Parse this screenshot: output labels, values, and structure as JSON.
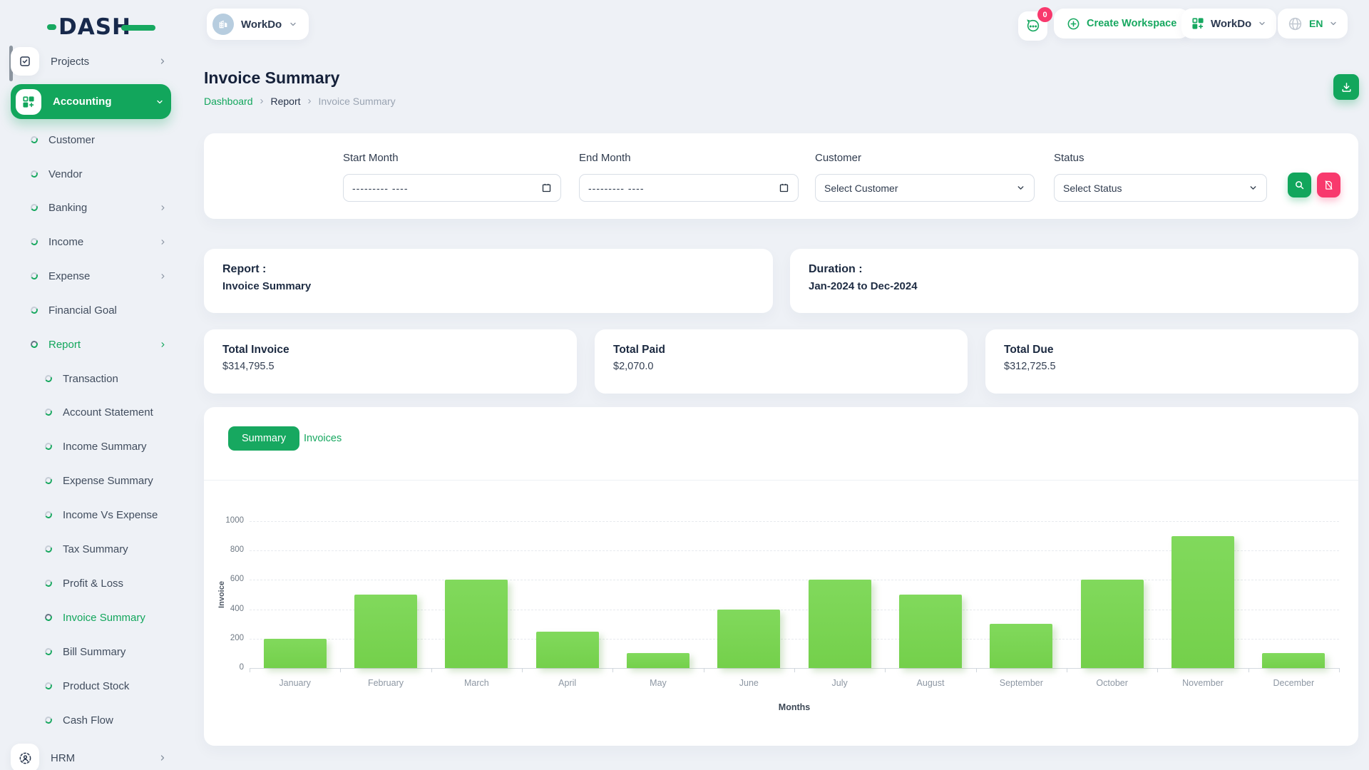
{
  "brand": {
    "name": "DASH"
  },
  "topbar": {
    "workspace_selector": {
      "label": "WorkDo",
      "avatar_icon": "building-icon"
    },
    "messages": {
      "badge": "0",
      "icon": "chat-bubble-icon"
    },
    "create_workspace": {
      "label": "Create Workspace",
      "icon": "plus-circle-icon"
    },
    "workspace_menu": {
      "label": "WorkDo",
      "icon": "grid-plus-icon"
    },
    "language_menu": {
      "label": "EN",
      "icon": "globe-icon"
    }
  },
  "sidebar": {
    "items": [
      {
        "label": "Projects"
      },
      {
        "label": "Accounting"
      },
      {
        "label": "Customer"
      },
      {
        "label": "Vendor"
      },
      {
        "label": "Banking"
      },
      {
        "label": "Income"
      },
      {
        "label": "Expense"
      },
      {
        "label": "Financial Goal"
      },
      {
        "label": "Report"
      },
      {
        "label": "Transaction"
      },
      {
        "label": "Account Statement"
      },
      {
        "label": "Income Summary"
      },
      {
        "label": "Expense Summary"
      },
      {
        "label": "Income Vs Expense"
      },
      {
        "label": "Tax Summary"
      },
      {
        "label": "Profit & Loss"
      },
      {
        "label": "Invoice Summary"
      },
      {
        "label": "Bill Summary"
      },
      {
        "label": "Product Stock"
      },
      {
        "label": "Cash Flow"
      },
      {
        "label": "HRM"
      }
    ]
  },
  "page": {
    "title": "Invoice Summary",
    "breadcrumb": {
      "items": [
        "Dashboard",
        "Report",
        "Invoice Summary"
      ]
    }
  },
  "filters": {
    "start_month": {
      "label": "Start Month",
      "placeholder": "--------- ----"
    },
    "end_month": {
      "label": "End Month",
      "placeholder": "--------- ----"
    },
    "customer": {
      "label": "Customer",
      "value": "Select Customer"
    },
    "status": {
      "label": "Status",
      "value": "Select Status"
    }
  },
  "report_info": {
    "title": "Report :",
    "value": "Invoice Summary"
  },
  "duration_info": {
    "title": "Duration :",
    "value": "Jan-2024 to Dec-2024"
  },
  "stats": [
    {
      "label": "Total Invoice",
      "value": "$314,795.5"
    },
    {
      "label": "Total Paid",
      "value": "$2,070.0"
    },
    {
      "label": "Total Due",
      "value": "$312,725.5"
    }
  ],
  "tabs": [
    {
      "label": "Summary",
      "active": true
    },
    {
      "label": "Invoices",
      "active": false
    }
  ],
  "chart_data": {
    "type": "bar",
    "title": "",
    "categories": [
      "January",
      "February",
      "March",
      "April",
      "May",
      "June",
      "July",
      "August",
      "September",
      "October",
      "November",
      "December"
    ],
    "values": [
      200,
      500,
      600,
      250,
      100,
      400,
      600,
      500,
      300,
      600,
      900,
      100
    ],
    "xlabel": "Months",
    "ylabel": "Invoice",
    "ylim": [
      0,
      1000
    ],
    "ytick_step": 200,
    "grid": true,
    "legend": "none",
    "bar_color": "#77d34f"
  },
  "colors": {
    "accent": "#12a65c",
    "danger": "#f8396d",
    "bar": "#77d34f",
    "background": "#eef1f6"
  }
}
